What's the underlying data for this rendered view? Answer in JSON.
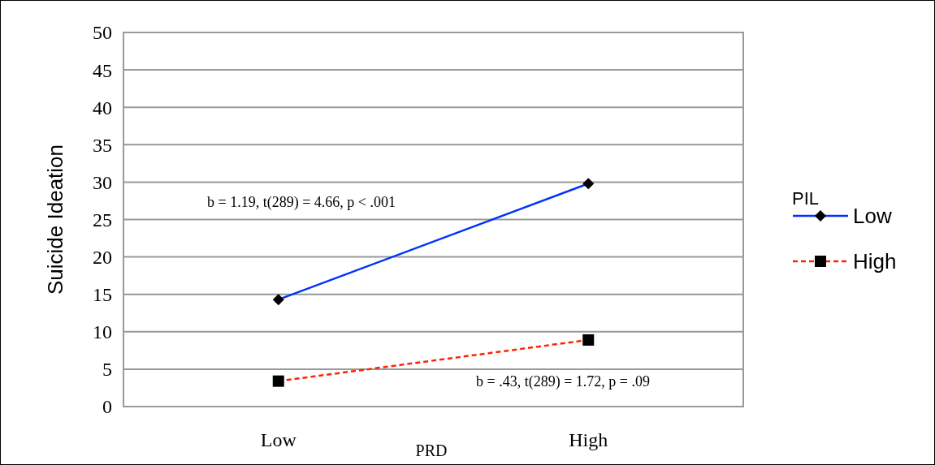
{
  "chart_data": {
    "type": "line",
    "xlabel": "PRD",
    "ylabel": "Suicide Ideation",
    "legend_title": "PIL",
    "categories": [
      "Low",
      "High"
    ],
    "ylim": [
      0,
      50
    ],
    "yticks": [
      0,
      5,
      10,
      15,
      20,
      25,
      30,
      35,
      40,
      45,
      50
    ],
    "grid": "y",
    "legend": "right",
    "series": [
      {
        "name": "Low",
        "color": "#0033ff",
        "values": [
          14.3,
          29.8
        ],
        "marker": "diamond",
        "line_style": "solid"
      },
      {
        "name": "High",
        "color": "#ff2200",
        "values": [
          3.4,
          8.9
        ],
        "marker": "square",
        "line_style": "dashed"
      }
    ],
    "annotations": [
      "b = 1.19, t(289) = 4.66, p < .001",
      "b = .43, t(289) = 1.72, p = .09"
    ]
  }
}
